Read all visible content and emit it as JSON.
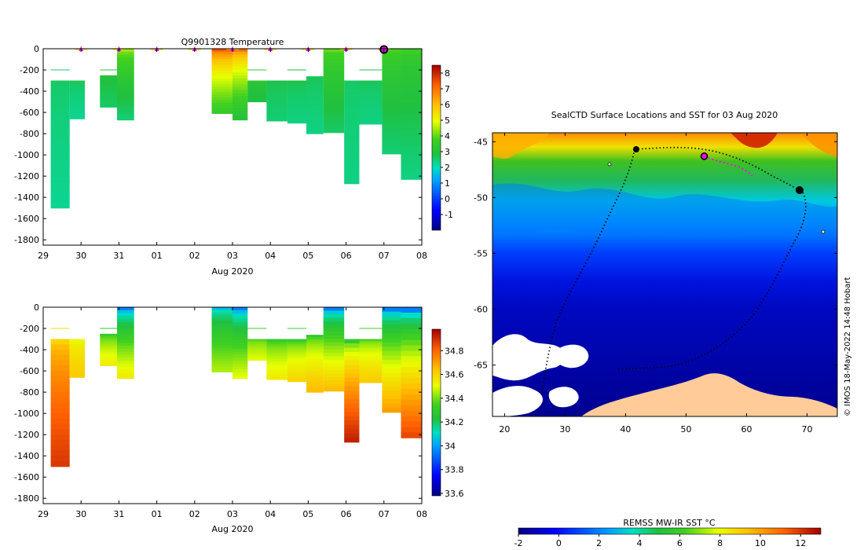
{
  "chart_data": [
    {
      "type": "heatmap",
      "title": "Q9901328  Temperature",
      "xlabel": "Aug 2020",
      "ylabel": "",
      "x_ticks": [
        "29",
        "30",
        "31",
        "01",
        "02",
        "03",
        "04",
        "05",
        "06",
        "07",
        "08"
      ],
      "y_ticks": [
        "0",
        "-200",
        "-400",
        "-600",
        "-800",
        "-1000",
        "-1200",
        "-1400",
        "-1600",
        "-1800"
      ],
      "ylim": [
        -1850,
        0
      ],
      "xlim_days": [
        0,
        10
      ],
      "colorbar_ticks": [
        "8",
        "7",
        "6",
        "5",
        "4",
        "3",
        "2",
        "1",
        "0",
        "-1"
      ],
      "colorbar_range": [
        -2,
        8.5
      ],
      "profile_markers_days": [
        1,
        2,
        3,
        4,
        5,
        6,
        7,
        8,
        9
      ],
      "current_profile_day": 9,
      "profiles": [
        {
          "x0": 0.2,
          "x1": 0.7,
          "top": -300,
          "bottom": -1500,
          "surface": 2.6,
          "deep": 2.3
        },
        {
          "x0": 0.7,
          "x1": 1.1,
          "top": -300,
          "bottom": -660,
          "surface": 2.7,
          "deep": 2.3
        },
        {
          "x0": 1.5,
          "x1": 1.95,
          "top": -250,
          "bottom": -550,
          "surface": 3.0,
          "deep": 2.6
        },
        {
          "x0": 1.95,
          "x1": 2.4,
          "top": 0,
          "bottom": -670,
          "surface": 4.4,
          "deep": 2.5
        },
        {
          "x0": 4.45,
          "x1": 5.0,
          "top": 0,
          "bottom": -610,
          "surface": 7.4,
          "deep": 3.5
        },
        {
          "x0": 5.0,
          "x1": 5.4,
          "top": 0,
          "bottom": -670,
          "surface": 7.0,
          "deep": 3.0
        },
        {
          "x0": 5.4,
          "x1": 5.9,
          "top": -300,
          "bottom": -500,
          "surface": 3.3,
          "deep": 2.8
        },
        {
          "x0": 5.9,
          "x1": 6.45,
          "top": -300,
          "bottom": -680,
          "surface": 2.8,
          "deep": 2.5
        },
        {
          "x0": 6.45,
          "x1": 6.95,
          "top": -300,
          "bottom": -700,
          "surface": 2.8,
          "deep": 2.4
        },
        {
          "x0": 6.95,
          "x1": 7.4,
          "top": -260,
          "bottom": -800,
          "surface": 2.7,
          "deep": 2.4
        },
        {
          "x0": 7.4,
          "x1": 7.95,
          "top": 0,
          "bottom": -790,
          "surface": 4.0,
          "deep": 2.6
        },
        {
          "x0": 7.95,
          "x1": 8.35,
          "top": -300,
          "bottom": -1270,
          "surface": 2.6,
          "deep": 2.4
        },
        {
          "x0": 8.35,
          "x1": 8.95,
          "top": -300,
          "bottom": -710,
          "surface": 2.7,
          "deep": 2.4
        },
        {
          "x0": 8.95,
          "x1": 9.45,
          "top": 0,
          "bottom": -990,
          "surface": 3.8,
          "deep": 2.5
        },
        {
          "x0": 9.45,
          "x1": 10.0,
          "top": 0,
          "bottom": -1230,
          "surface": 3.6,
          "deep": 2.4
        }
      ]
    },
    {
      "type": "heatmap",
      "title": "",
      "xlabel": "Aug 2020",
      "ylabel": "",
      "x_ticks": [
        "29",
        "30",
        "31",
        "01",
        "02",
        "03",
        "04",
        "05",
        "06",
        "07",
        "08"
      ],
      "y_ticks": [
        "0",
        "-200",
        "-400",
        "-600",
        "-800",
        "-1000",
        "-1200",
        "-1400",
        "-1600",
        "-1800"
      ],
      "ylim": [
        -1850,
        0
      ],
      "colorbar_ticks": [
        "34.8",
        "34.6",
        "34.4",
        "34.2",
        "34",
        "33.8",
        "33.6"
      ],
      "colorbar_range": [
        33.58,
        34.98
      ],
      "profiles": [
        {
          "x0": 0.2,
          "x1": 0.7,
          "top": -300,
          "bottom": -1500,
          "surface": 34.6,
          "deep": 34.88
        },
        {
          "x0": 0.7,
          "x1": 1.1,
          "top": -300,
          "bottom": -660,
          "surface": 34.5,
          "deep": 34.62
        },
        {
          "x0": 1.5,
          "x1": 1.95,
          "top": -250,
          "bottom": -550,
          "surface": 34.3,
          "deep": 34.55
        },
        {
          "x0": 1.95,
          "x1": 2.4,
          "top": 0,
          "bottom": -670,
          "surface": 33.95,
          "deep": 34.55
        },
        {
          "x0": 4.45,
          "x1": 5.0,
          "top": 0,
          "bottom": -610,
          "surface": 34.05,
          "deep": 34.45
        },
        {
          "x0": 5.0,
          "x1": 5.4,
          "top": 0,
          "bottom": -670,
          "surface": 33.95,
          "deep": 34.5
        },
        {
          "x0": 5.4,
          "x1": 5.9,
          "top": -300,
          "bottom": -500,
          "surface": 34.35,
          "deep": 34.5
        },
        {
          "x0": 5.9,
          "x1": 6.45,
          "top": -300,
          "bottom": -680,
          "surface": 34.3,
          "deep": 34.55
        },
        {
          "x0": 6.45,
          "x1": 6.95,
          "top": -300,
          "bottom": -700,
          "surface": 34.3,
          "deep": 34.6
        },
        {
          "x0": 6.95,
          "x1": 7.4,
          "top": -260,
          "bottom": -800,
          "surface": 34.3,
          "deep": 34.65
        },
        {
          "x0": 7.4,
          "x1": 7.95,
          "top": 0,
          "bottom": -790,
          "surface": 33.95,
          "deep": 34.65
        },
        {
          "x0": 7.95,
          "x1": 8.35,
          "top": -300,
          "bottom": -1270,
          "surface": 34.3,
          "deep": 34.92
        },
        {
          "x0": 8.35,
          "x1": 8.95,
          "top": -300,
          "bottom": -710,
          "surface": 34.35,
          "deep": 34.62
        },
        {
          "x0": 8.95,
          "x1": 9.45,
          "top": 0,
          "bottom": -990,
          "surface": 33.95,
          "deep": 34.7
        },
        {
          "x0": 9.45,
          "x1": 10.0,
          "top": 0,
          "bottom": -1230,
          "surface": 33.95,
          "deep": 34.85
        }
      ]
    },
    {
      "type": "heatmap",
      "title": "SealCTD Surface Locations and SST for 03 Aug 2020",
      "x_ticks": [
        "20",
        "30",
        "40",
        "50",
        "60",
        "70"
      ],
      "y_ticks": [
        "-45",
        "-50",
        "-55",
        "-60",
        "-65"
      ],
      "xlim": [
        18,
        75
      ],
      "ylim": [
        -69.6,
        -44.2
      ],
      "colorbar_label": "REMSS MW-IR SST °C",
      "colorbar_ticks": [
        "-2",
        "0",
        "2",
        "4",
        "6",
        "8",
        "10",
        "12"
      ],
      "colorbar_range": [
        -2,
        13
      ],
      "current_position": [
        53,
        -46.3
      ],
      "credit": "© IMOS 18-May-2022 14:48 Hobart"
    }
  ]
}
